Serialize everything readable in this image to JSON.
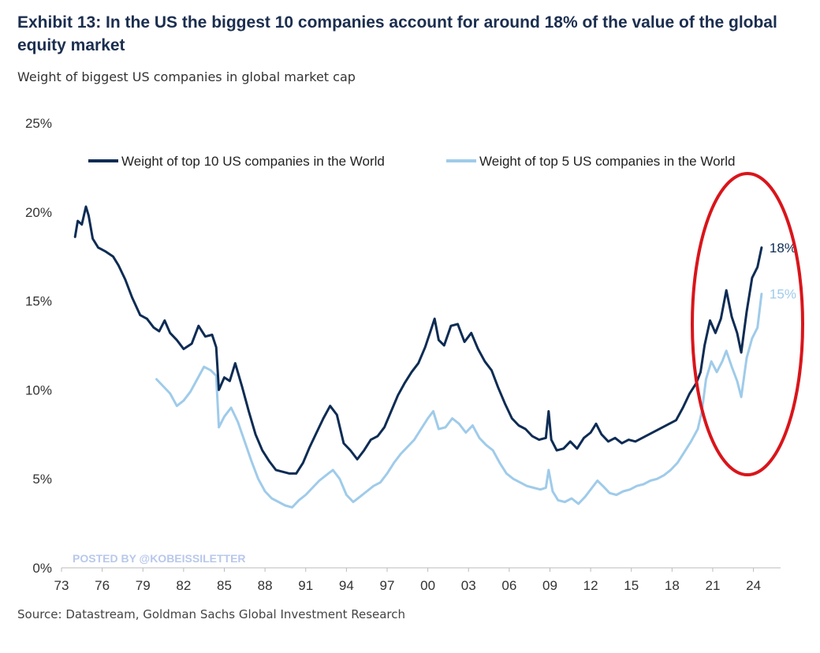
{
  "header": {
    "title": "Exhibit 13: In the US the biggest 10 companies account for around 18% of the value of the global equity market",
    "subtitle": "Weight of biggest US companies in global market cap"
  },
  "footer": {
    "source": "Source: Datastream, Goldman Sachs Global Investment Research"
  },
  "watermark": "POSTED BY @KOBEISSILETTER",
  "colors": {
    "top10": "#0d2c54",
    "top5": "#9fcbea",
    "highlight_circle": "#d9151b",
    "axis": "#bbbbbb"
  },
  "chart_data": {
    "type": "line",
    "title": "Exhibit 13: In the US the biggest 10 companies account for around 18% of the value of the global equity market",
    "subtitle": "Weight of biggest US companies in global market cap",
    "x_unit": "year",
    "xlim": [
      1973,
      2026
    ],
    "ylim": [
      0,
      25
    ],
    "y_ticks": [
      "0%",
      "5%",
      "10%",
      "15%",
      "20%",
      "25%"
    ],
    "x_ticks": [
      "73",
      "76",
      "79",
      "82",
      "85",
      "88",
      "91",
      "94",
      "97",
      "00",
      "03",
      "06",
      "09",
      "12",
      "15",
      "18",
      "21",
      "24"
    ],
    "legend_position": "top",
    "grid": false,
    "series": [
      {
        "name": "Weight of top 10 US companies in the World",
        "color": "#0d2c54",
        "end_label": "18%",
        "points": [
          [
            1974.0,
            18.6
          ],
          [
            1974.2,
            19.5
          ],
          [
            1974.5,
            19.3
          ],
          [
            1974.8,
            20.3
          ],
          [
            1975.0,
            19.8
          ],
          [
            1975.3,
            18.5
          ],
          [
            1975.7,
            18.0
          ],
          [
            1976.2,
            17.8
          ],
          [
            1976.8,
            17.5
          ],
          [
            1977.2,
            17.0
          ],
          [
            1977.7,
            16.2
          ],
          [
            1978.2,
            15.2
          ],
          [
            1978.8,
            14.2
          ],
          [
            1979.3,
            14.0
          ],
          [
            1979.8,
            13.5
          ],
          [
            1980.2,
            13.3
          ],
          [
            1980.6,
            13.9
          ],
          [
            1981.0,
            13.2
          ],
          [
            1981.5,
            12.8
          ],
          [
            1982.0,
            12.3
          ],
          [
            1982.6,
            12.6
          ],
          [
            1983.1,
            13.6
          ],
          [
            1983.6,
            13.0
          ],
          [
            1984.1,
            13.1
          ],
          [
            1984.4,
            12.4
          ],
          [
            1984.6,
            10.0
          ],
          [
            1985.0,
            10.7
          ],
          [
            1985.4,
            10.5
          ],
          [
            1985.8,
            11.5
          ],
          [
            1986.3,
            10.2
          ],
          [
            1986.8,
            8.8
          ],
          [
            1987.3,
            7.5
          ],
          [
            1987.8,
            6.6
          ],
          [
            1988.3,
            6.0
          ],
          [
            1988.8,
            5.5
          ],
          [
            1989.3,
            5.4
          ],
          [
            1989.8,
            5.3
          ],
          [
            1990.3,
            5.3
          ],
          [
            1990.8,
            5.9
          ],
          [
            1991.3,
            6.8
          ],
          [
            1991.8,
            7.6
          ],
          [
            1992.3,
            8.4
          ],
          [
            1992.8,
            9.1
          ],
          [
            1993.3,
            8.6
          ],
          [
            1993.8,
            7.0
          ],
          [
            1994.3,
            6.6
          ],
          [
            1994.8,
            6.1
          ],
          [
            1995.3,
            6.6
          ],
          [
            1995.8,
            7.2
          ],
          [
            1996.3,
            7.4
          ],
          [
            1996.8,
            7.9
          ],
          [
            1997.3,
            8.8
          ],
          [
            1997.8,
            9.7
          ],
          [
            1998.3,
            10.4
          ],
          [
            1998.8,
            11.0
          ],
          [
            1999.3,
            11.5
          ],
          [
            1999.8,
            12.4
          ],
          [
            2000.2,
            13.3
          ],
          [
            2000.5,
            14.0
          ],
          [
            2000.8,
            12.8
          ],
          [
            2001.2,
            12.5
          ],
          [
            2001.7,
            13.6
          ],
          [
            2002.2,
            13.7
          ],
          [
            2002.7,
            12.7
          ],
          [
            2003.2,
            13.2
          ],
          [
            2003.7,
            12.3
          ],
          [
            2004.2,
            11.6
          ],
          [
            2004.7,
            11.1
          ],
          [
            2005.2,
            10.1
          ],
          [
            2005.7,
            9.2
          ],
          [
            2006.2,
            8.4
          ],
          [
            2006.7,
            8.0
          ],
          [
            2007.2,
            7.8
          ],
          [
            2007.7,
            7.4
          ],
          [
            2008.2,
            7.2
          ],
          [
            2008.7,
            7.3
          ],
          [
            2008.9,
            8.8
          ],
          [
            2009.1,
            7.2
          ],
          [
            2009.5,
            6.6
          ],
          [
            2010.0,
            6.7
          ],
          [
            2010.5,
            7.1
          ],
          [
            2011.0,
            6.7
          ],
          [
            2011.5,
            7.3
          ],
          [
            2012.0,
            7.6
          ],
          [
            2012.4,
            8.1
          ],
          [
            2012.8,
            7.5
          ],
          [
            2013.3,
            7.1
          ],
          [
            2013.8,
            7.3
          ],
          [
            2014.3,
            7.0
          ],
          [
            2014.8,
            7.2
          ],
          [
            2015.3,
            7.1
          ],
          [
            2015.8,
            7.3
          ],
          [
            2016.3,
            7.5
          ],
          [
            2016.8,
            7.7
          ],
          [
            2017.3,
            7.9
          ],
          [
            2017.8,
            8.1
          ],
          [
            2018.3,
            8.3
          ],
          [
            2018.8,
            9.0
          ],
          [
            2019.3,
            9.8
          ],
          [
            2019.8,
            10.4
          ],
          [
            2020.1,
            11.0
          ],
          [
            2020.4,
            12.5
          ],
          [
            2020.8,
            13.9
          ],
          [
            2021.2,
            13.2
          ],
          [
            2021.6,
            14.0
          ],
          [
            2022.0,
            15.6
          ],
          [
            2022.4,
            14.1
          ],
          [
            2022.8,
            13.2
          ],
          [
            2023.1,
            12.1
          ],
          [
            2023.5,
            14.4
          ],
          [
            2023.9,
            16.3
          ],
          [
            2024.3,
            16.9
          ],
          [
            2024.6,
            18.0
          ]
        ]
      },
      {
        "name": "Weight of top 5 US companies in the World",
        "color": "#9fcbea",
        "end_label": "15%",
        "points": [
          [
            1980.0,
            10.6
          ],
          [
            1980.5,
            10.2
          ],
          [
            1981.0,
            9.8
          ],
          [
            1981.5,
            9.1
          ],
          [
            1982.0,
            9.4
          ],
          [
            1982.5,
            9.9
          ],
          [
            1983.0,
            10.6
          ],
          [
            1983.5,
            11.3
          ],
          [
            1984.0,
            11.1
          ],
          [
            1984.4,
            10.8
          ],
          [
            1984.6,
            7.9
          ],
          [
            1985.0,
            8.5
          ],
          [
            1985.5,
            9.0
          ],
          [
            1986.0,
            8.2
          ],
          [
            1986.5,
            7.1
          ],
          [
            1987.0,
            6.0
          ],
          [
            1987.5,
            5.0
          ],
          [
            1988.0,
            4.3
          ],
          [
            1988.5,
            3.9
          ],
          [
            1989.0,
            3.7
          ],
          [
            1989.5,
            3.5
          ],
          [
            1990.0,
            3.4
          ],
          [
            1990.5,
            3.8
          ],
          [
            1991.0,
            4.1
          ],
          [
            1991.5,
            4.5
          ],
          [
            1992.0,
            4.9
          ],
          [
            1992.5,
            5.2
          ],
          [
            1993.0,
            5.5
          ],
          [
            1993.5,
            5.0
          ],
          [
            1994.0,
            4.1
          ],
          [
            1994.5,
            3.7
          ],
          [
            1995.0,
            4.0
          ],
          [
            1995.5,
            4.3
          ],
          [
            1996.0,
            4.6
          ],
          [
            1996.5,
            4.8
          ],
          [
            1997.0,
            5.3
          ],
          [
            1997.5,
            5.9
          ],
          [
            1998.0,
            6.4
          ],
          [
            1998.5,
            6.8
          ],
          [
            1999.0,
            7.2
          ],
          [
            1999.5,
            7.8
          ],
          [
            2000.0,
            8.4
          ],
          [
            2000.4,
            8.8
          ],
          [
            2000.8,
            7.8
          ],
          [
            2001.3,
            7.9
          ],
          [
            2001.8,
            8.4
          ],
          [
            2002.3,
            8.1
          ],
          [
            2002.8,
            7.6
          ],
          [
            2003.3,
            8.0
          ],
          [
            2003.8,
            7.3
          ],
          [
            2004.3,
            6.9
          ],
          [
            2004.8,
            6.6
          ],
          [
            2005.3,
            5.9
          ],
          [
            2005.8,
            5.3
          ],
          [
            2006.3,
            5.0
          ],
          [
            2006.8,
            4.8
          ],
          [
            2007.3,
            4.6
          ],
          [
            2007.8,
            4.5
          ],
          [
            2008.3,
            4.4
          ],
          [
            2008.7,
            4.5
          ],
          [
            2008.9,
            5.5
          ],
          [
            2009.2,
            4.3
          ],
          [
            2009.6,
            3.8
          ],
          [
            2010.1,
            3.7
          ],
          [
            2010.6,
            3.9
          ],
          [
            2011.1,
            3.6
          ],
          [
            2011.6,
            4.0
          ],
          [
            2012.1,
            4.5
          ],
          [
            2012.5,
            4.9
          ],
          [
            2012.9,
            4.6
          ],
          [
            2013.4,
            4.2
          ],
          [
            2013.9,
            4.1
          ],
          [
            2014.4,
            4.3
          ],
          [
            2014.9,
            4.4
          ],
          [
            2015.4,
            4.6
          ],
          [
            2015.9,
            4.7
          ],
          [
            2016.4,
            4.9
          ],
          [
            2016.9,
            5.0
          ],
          [
            2017.4,
            5.2
          ],
          [
            2017.9,
            5.5
          ],
          [
            2018.4,
            5.9
          ],
          [
            2018.9,
            6.5
          ],
          [
            2019.4,
            7.1
          ],
          [
            2019.9,
            7.8
          ],
          [
            2020.2,
            8.8
          ],
          [
            2020.5,
            10.6
          ],
          [
            2020.9,
            11.6
          ],
          [
            2021.3,
            11.0
          ],
          [
            2021.7,
            11.6
          ],
          [
            2022.0,
            12.2
          ],
          [
            2022.4,
            11.3
          ],
          [
            2022.8,
            10.5
          ],
          [
            2023.1,
            9.6
          ],
          [
            2023.5,
            11.8
          ],
          [
            2023.9,
            12.9
          ],
          [
            2024.3,
            13.5
          ],
          [
            2024.6,
            15.4
          ]
        ]
      }
    ]
  }
}
